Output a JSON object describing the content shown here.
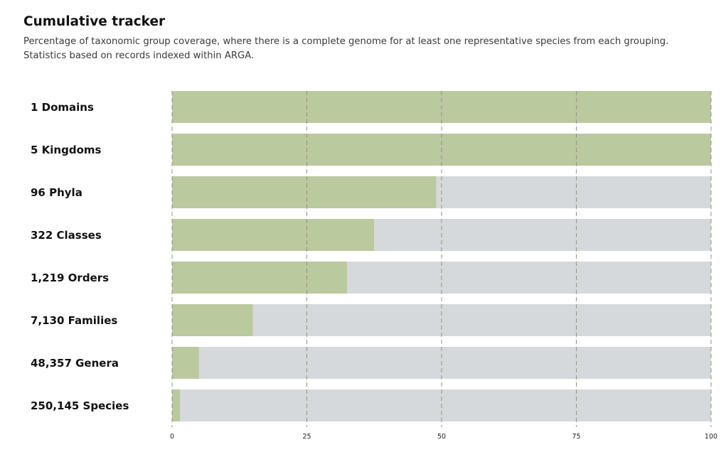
{
  "header": {
    "title": "Cumulative tracker",
    "subtitle": "Percentage of taxonomic group coverage, where there is a complete genome for at least one representative species from each grouping. Statistics based on records indexed within ARGA."
  },
  "colors": {
    "covered": "#bac99e",
    "remaining": "#d5d9db",
    "gridline": "#8f9487"
  },
  "chart_data": {
    "type": "bar",
    "orientation": "horizontal",
    "stacked": true,
    "categories": [
      "1 Domains",
      "5 Kingdoms",
      "96 Phyla",
      "322 Classes",
      "1,219 Orders",
      "7,130 Families",
      "48,357 Genera",
      "250,145 Species"
    ],
    "series": [
      {
        "values": [
          100,
          100,
          49,
          37.5,
          32.5,
          15,
          5,
          1.5
        ]
      },
      {
        "values": [
          0,
          0,
          51,
          62.5,
          67.5,
          85,
          95,
          98.5
        ]
      }
    ],
    "xlim": [
      0,
      100
    ],
    "xticks": [
      "0",
      "25",
      "50",
      "75",
      "100"
    ],
    "grid": "vertical-dashed",
    "legend": "none"
  }
}
